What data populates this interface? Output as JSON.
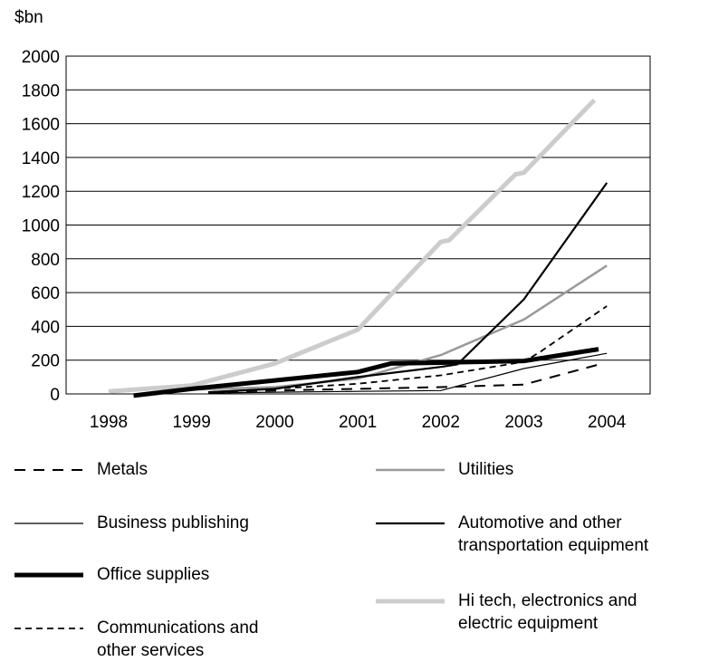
{
  "chart_data": {
    "type": "line",
    "title": "",
    "ylabel": "$bn",
    "xlabel": "",
    "ylim": [
      0,
      2000
    ],
    "yticks": [
      "0",
      "200",
      "400",
      "600",
      "800",
      "1000",
      "1200",
      "1400",
      "1600",
      "1800",
      "2000"
    ],
    "xlim": [
      1998,
      2004
    ],
    "xticks": [
      "1998",
      "1999",
      "2000",
      "2001",
      "2002",
      "2003",
      "2004"
    ],
    "grid": "horizontal",
    "legend_position": "bottom",
    "series": [
      {
        "name": "Metals",
        "color": "#000000",
        "width": 2,
        "dash": "12,9",
        "points": [
          [
            1999.2,
            10
          ],
          [
            2000,
            20
          ],
          [
            2001,
            30
          ],
          [
            2002,
            40
          ],
          [
            2003,
            55
          ],
          [
            2003.95,
            180
          ]
        ]
      },
      {
        "name": "Business publishing",
        "color": "#000000",
        "width": 1.2,
        "dash": "",
        "points": [
          [
            1999.2,
            5
          ],
          [
            2000,
            10
          ],
          [
            2001,
            15
          ],
          [
            2002,
            20
          ],
          [
            2003,
            150
          ],
          [
            2004,
            240
          ]
        ]
      },
      {
        "name": "Office supplies",
        "color": "#000000",
        "width": 5,
        "dash": "",
        "points": [
          [
            1998.3,
            -10
          ],
          [
            1999,
            30
          ],
          [
            2000,
            80
          ],
          [
            2001,
            130
          ],
          [
            2001.4,
            180
          ],
          [
            2002,
            185
          ],
          [
            2003,
            195
          ],
          [
            2003.9,
            265
          ]
        ]
      },
      {
        "name": "Communications and\nother services",
        "color": "#000000",
        "width": 1.8,
        "dash": "7,5",
        "points": [
          [
            1999.2,
            10
          ],
          [
            2000,
            30
          ],
          [
            2001,
            60
          ],
          [
            2002,
            110
          ],
          [
            2003,
            190
          ],
          [
            2003.2,
            250
          ],
          [
            2004,
            520
          ]
        ]
      },
      {
        "name": "Utilities",
        "color": "#999999",
        "width": 2.5,
        "dash": "",
        "points": [
          [
            1999,
            25
          ],
          [
            2000,
            40
          ],
          [
            2001,
            90
          ],
          [
            2002,
            230
          ],
          [
            2003,
            440
          ],
          [
            2004,
            760
          ]
        ]
      },
      {
        "name": "Automotive and other\ntransportation equipment",
        "color": "#000000",
        "width": 2.2,
        "dash": "",
        "points": [
          [
            1999.2,
            10
          ],
          [
            2000,
            30
          ],
          [
            2001,
            100
          ],
          [
            2002,
            160
          ],
          [
            2002.2,
            175
          ],
          [
            2003,
            560
          ],
          [
            2004,
            1250
          ]
        ]
      },
      {
        "name": "Hi tech, electronics and\nelectric equipment",
        "color": "#cccccc",
        "width": 5,
        "dash": "",
        "points": [
          [
            1998,
            15
          ],
          [
            1999,
            50
          ],
          [
            2000,
            180
          ],
          [
            2001,
            380
          ],
          [
            2002,
            900
          ],
          [
            2002.1,
            910
          ],
          [
            2002.9,
            1300
          ],
          [
            2003,
            1310
          ],
          [
            2003.85,
            1740
          ]
        ]
      }
    ]
  }
}
